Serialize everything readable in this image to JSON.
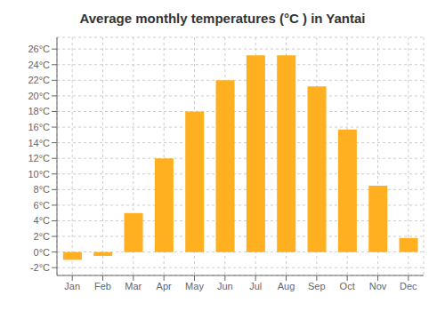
{
  "chart_data": {
    "type": "bar",
    "title": "Average monthly temperatures (°C ) in Yantai",
    "categories": [
      "Jan",
      "Feb",
      "Mar",
      "Apr",
      "May",
      "Jun",
      "Jul",
      "Aug",
      "Sep",
      "Oct",
      "Nov",
      "Dec"
    ],
    "values": [
      -1.0,
      -0.5,
      5.0,
      12.0,
      18.0,
      22.0,
      25.2,
      25.2,
      21.2,
      15.7,
      8.5,
      1.8
    ],
    "color": "#FFB020",
    "ylim": [
      -3.0,
      27.5
    ],
    "yticks": [
      {
        "value": -2,
        "label": "-2°C"
      },
      {
        "value": 0,
        "label": "0°C"
      },
      {
        "value": 2,
        "label": "2°C"
      },
      {
        "value": 4,
        "label": "4°C"
      },
      {
        "value": 6,
        "label": "6°C"
      },
      {
        "value": 8,
        "label": "8°C"
      },
      {
        "value": 10,
        "label": "10°C"
      },
      {
        "value": 12,
        "label": "12°C"
      },
      {
        "value": 14,
        "label": "14°C"
      },
      {
        "value": 16,
        "label": "16°C"
      },
      {
        "value": 18,
        "label": "18°C"
      },
      {
        "value": 20,
        "label": "20°C"
      },
      {
        "value": 22,
        "label": "22°C"
      },
      {
        "value": 24,
        "label": "24°C"
      },
      {
        "value": 26,
        "label": "26°C"
      }
    ],
    "grid": true
  }
}
